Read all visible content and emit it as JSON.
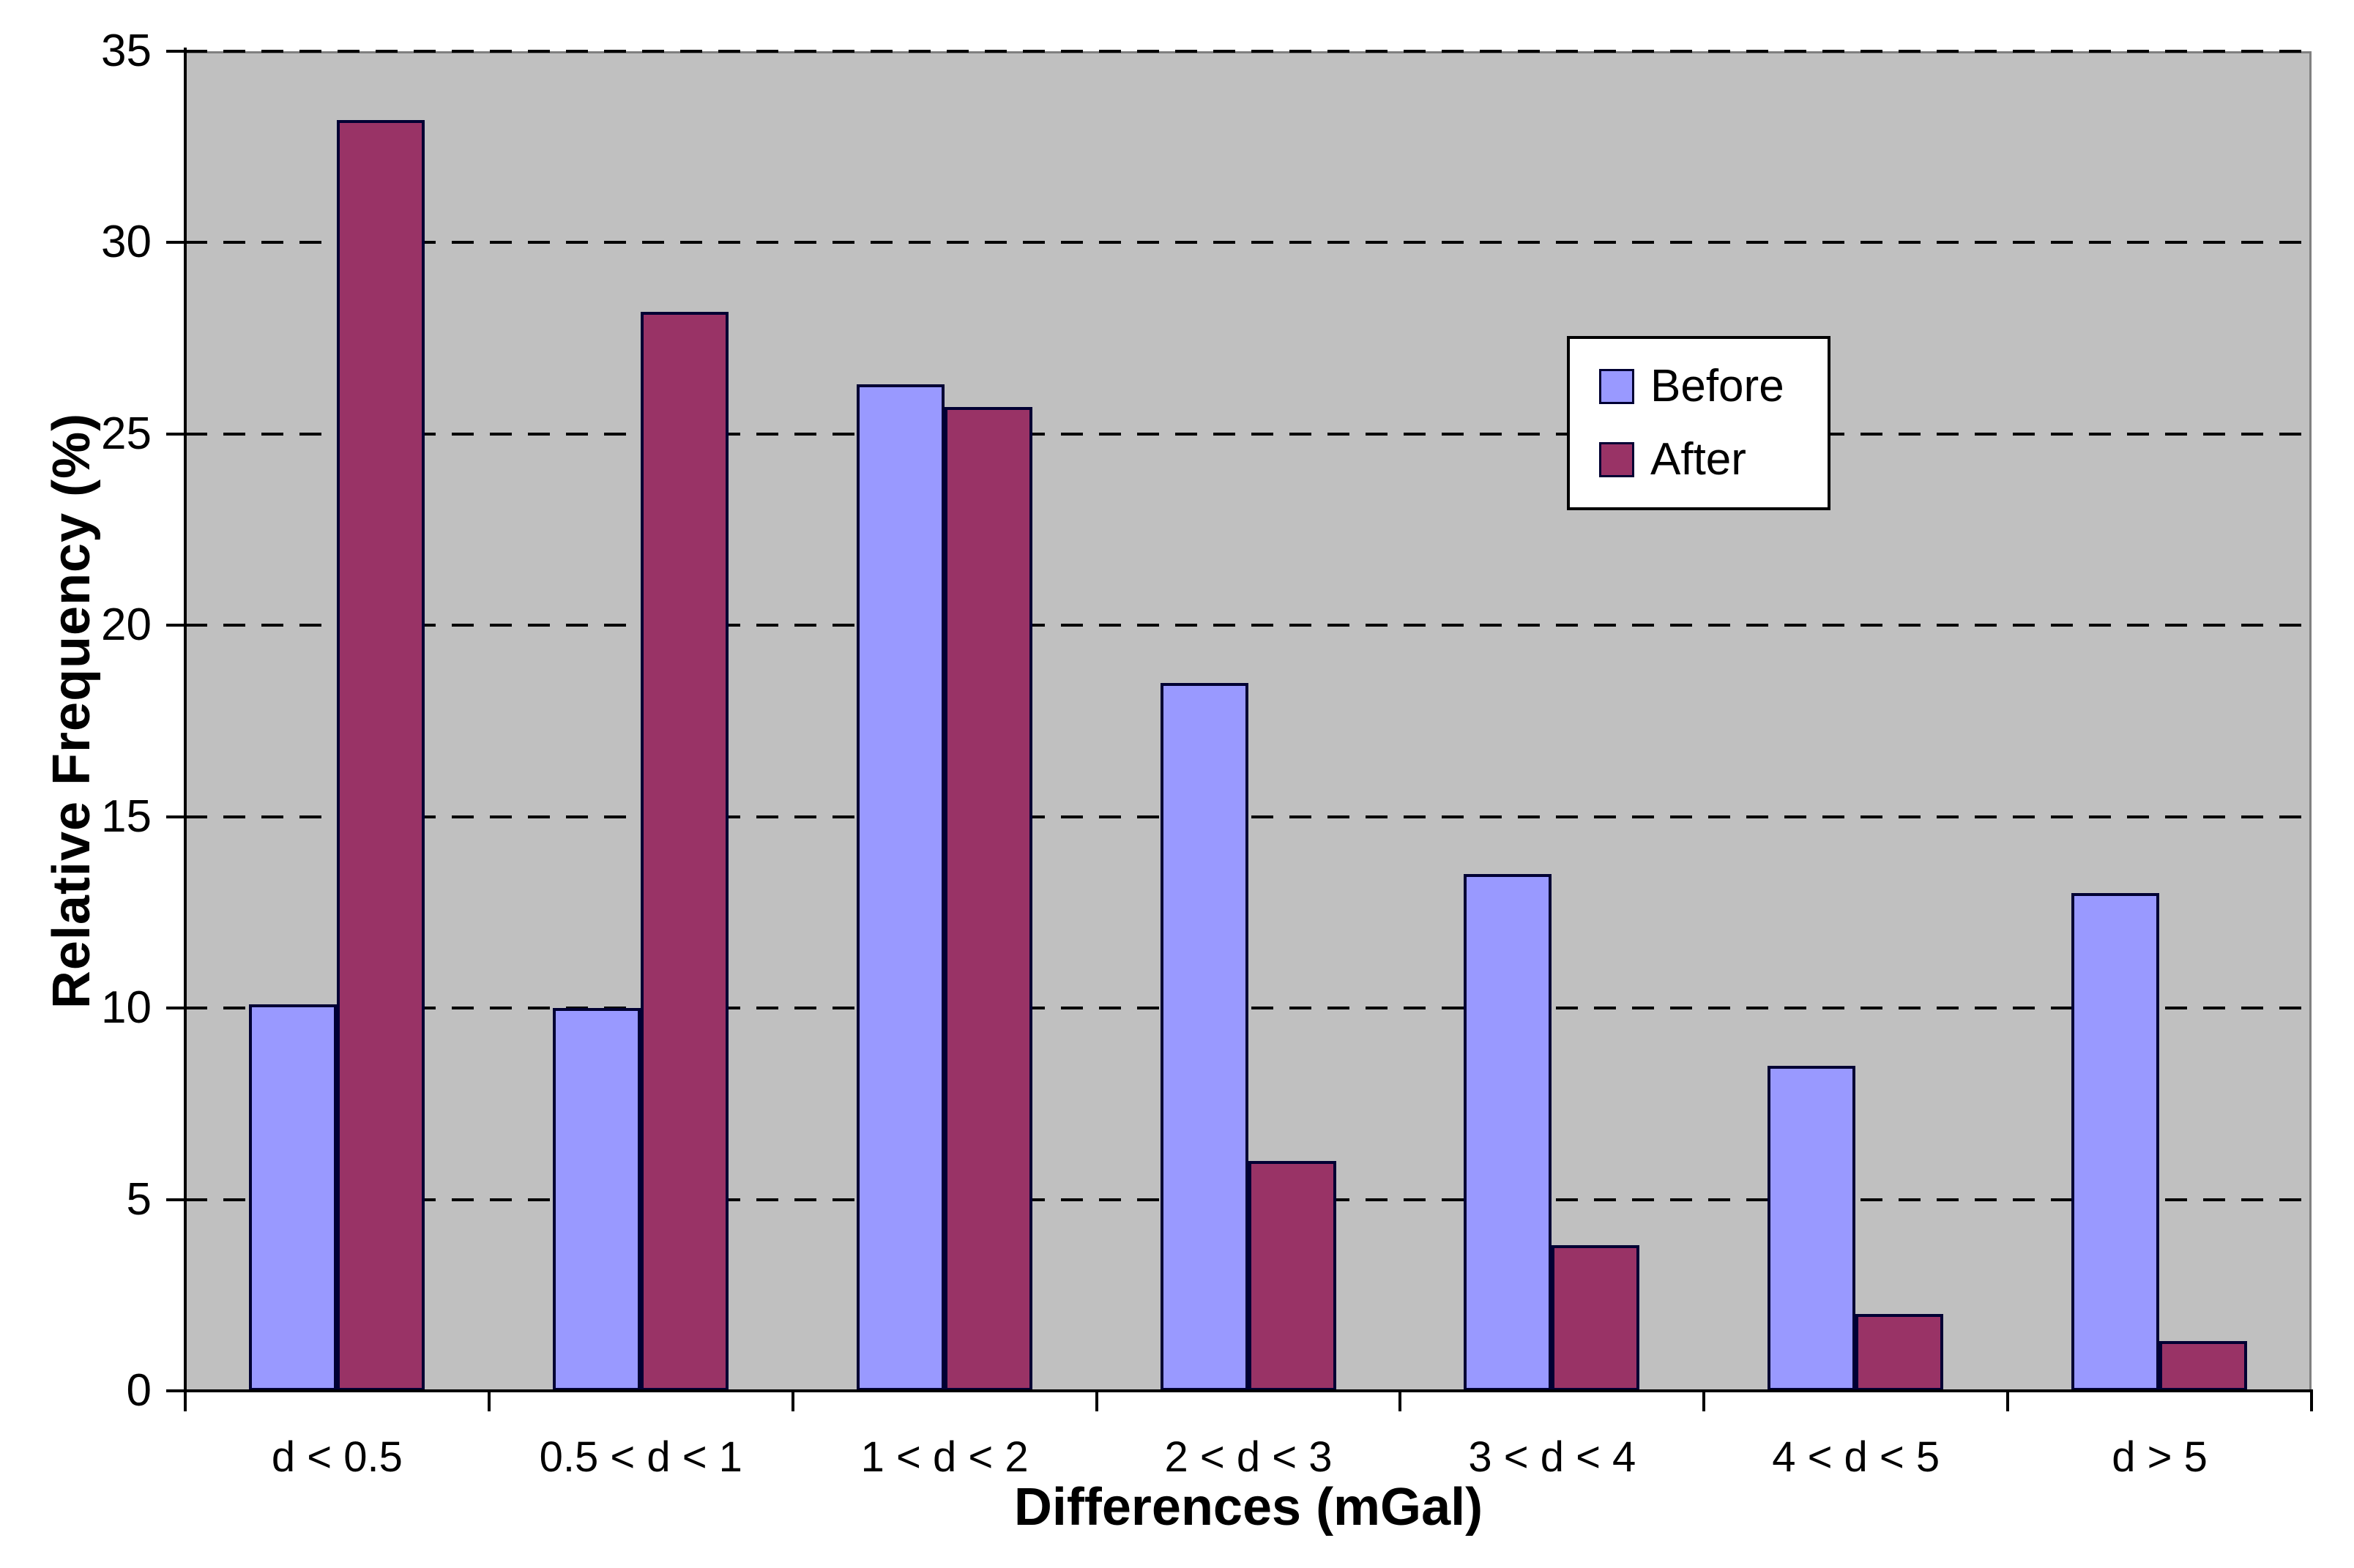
{
  "chart_data": {
    "type": "bar",
    "categories": [
      "d < 0.5",
      "0.5 < d < 1",
      "1 < d < 2",
      "2 < d < 3",
      "3 < d < 4",
      "4 < d < 5",
      "d > 5"
    ],
    "series": [
      {
        "name": "Before",
        "color": "#9999ff",
        "values": [
          10.1,
          10.0,
          26.3,
          18.5,
          13.5,
          8.5,
          13.0
        ]
      },
      {
        "name": "After",
        "color": "#993366",
        "values": [
          33.2,
          28.2,
          25.7,
          6.0,
          3.8,
          2.0,
          1.3
        ]
      }
    ],
    "title": "",
    "xlabel": "Differences (mGal)",
    "ylabel": "Relative Frequency (%)",
    "ylim": [
      0,
      35
    ],
    "ytick_step": 5,
    "ytick_labels": [
      "0",
      "5",
      "10",
      "15",
      "20",
      "25",
      "30",
      "35"
    ],
    "grid": "horizontal-dashed",
    "legend_position": "upper-right",
    "colors": {
      "plot_background": "#c0c0c0",
      "plot_border": "#808080",
      "gridline": "#000000",
      "axis": "#000000",
      "bar_border": "#000033",
      "text": "#000000",
      "legend_background": "#ffffff",
      "legend_border": "#000000"
    }
  }
}
